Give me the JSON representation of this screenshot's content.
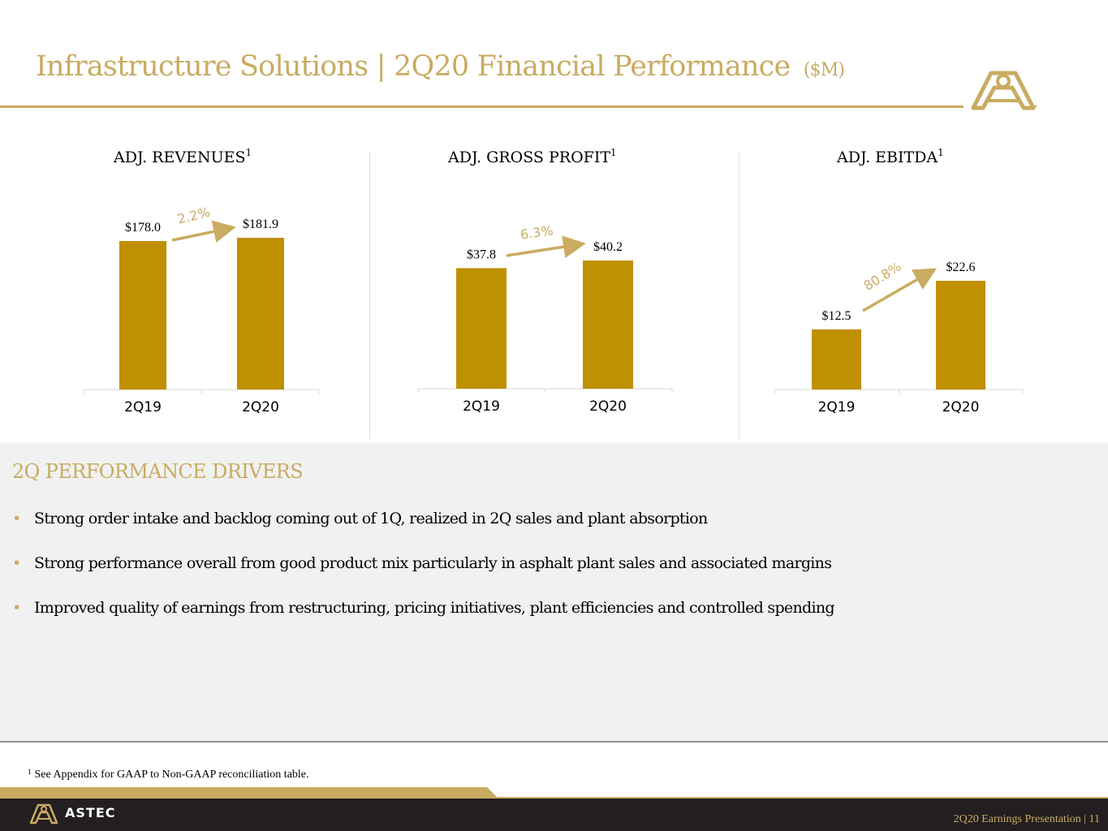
{
  "header": {
    "title": "Infrastructure Solutions | 2Q20 Financial Performance",
    "unit": "($M)"
  },
  "chart_data": [
    {
      "type": "bar",
      "title": "ADJ. REVENUES",
      "footnote_ref": "1",
      "categories": [
        "2Q19",
        "2Q20"
      ],
      "values": [
        178.0,
        181.9
      ],
      "value_labels": [
        "$178.0",
        "$181.9"
      ],
      "change_label": "2.2%"
    },
    {
      "type": "bar",
      "title": "ADJ. GROSS PROFIT",
      "footnote_ref": "1",
      "categories": [
        "2Q19",
        "2Q20"
      ],
      "values": [
        37.8,
        40.2
      ],
      "value_labels": [
        "$37.8",
        "$40.2"
      ],
      "change_label": "6.3%"
    },
    {
      "type": "bar",
      "title": "ADJ. EBITDA",
      "footnote_ref": "1",
      "categories": [
        "2Q19",
        "2Q20"
      ],
      "values": [
        12.5,
        22.6
      ],
      "value_labels": [
        "$12.5",
        "$22.6"
      ],
      "change_label": "80.8%"
    }
  ],
  "colors": {
    "accent": "#c9ab61",
    "bar": "#bf9000",
    "footer": "#231f20",
    "panel": "#f1f1f1"
  },
  "drivers": {
    "heading": "2Q PERFORMANCE DRIVERS",
    "bullet_glyph": "•",
    "items": [
      "Strong order intake and backlog coming out of 1Q, realized in 2Q sales and plant absorption",
      "Strong performance overall from good product mix particularly in asphalt plant sales and associated margins",
      "Improved quality of earnings from restructuring, pricing initiatives, plant efficiencies and controlled spending"
    ]
  },
  "footnote": {
    "marker": "1",
    "text": "See Appendix for GAAP to Non-GAAP reconciliation table."
  },
  "footer": {
    "brand": "ASTEC",
    "text": "2Q20 Earnings Presentation | 11",
    "logo_icon": "astec-logo-icon"
  }
}
